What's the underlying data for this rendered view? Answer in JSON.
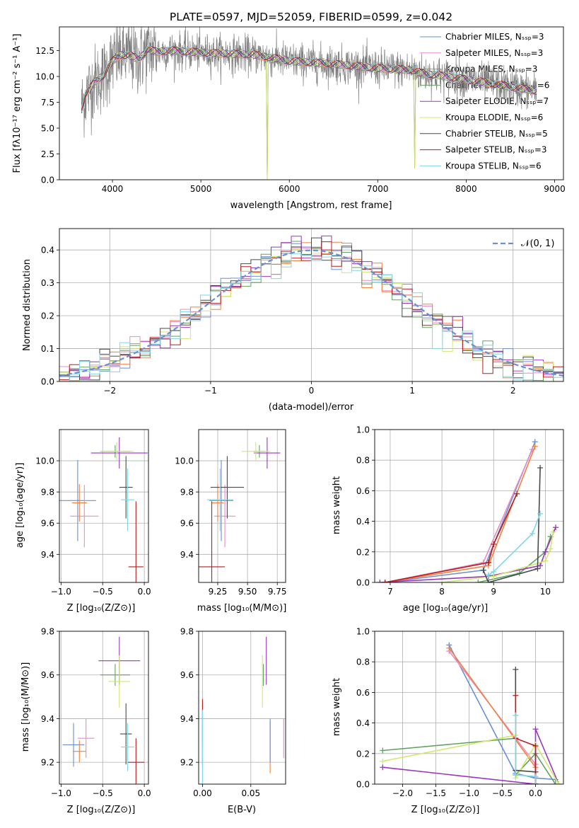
{
  "colors": {
    "c0": "#6a8fd6",
    "c1": "#e98bc6",
    "c2": "#f0803c",
    "c3": "#5fa35f",
    "c4": "#9a35c0",
    "c5": "#cfe86e",
    "c6": "#4a4a4a",
    "c7": "#b81d1d",
    "c8": "#7fd6e6",
    "spec": "#808080",
    "grid": "#b0b0b0"
  },
  "chart_data": [
    {
      "id": "spectrum",
      "type": "line",
      "title": "PLATE=0597, MJD=52059, FIBERID=0599, z=0.042",
      "xlabel": "wavelength [Angstrom, rest frame]",
      "ylabel": "Flux [fλ10⁻¹⁷ erg cm⁻² s⁻¹ A⁻¹]",
      "xlim": [
        3400,
        9100
      ],
      "ylim": [
        0,
        14.8
      ],
      "xticks": [
        4000,
        5000,
        6000,
        7000,
        8000,
        9000
      ],
      "yticks": [
        0.0,
        2.5,
        5.0,
        7.5,
        10.0,
        12.5
      ],
      "grid": false,
      "legend_position": "top-right",
      "series": [
        {
          "name": "Chabrier MILES, Nₛₛₚ=3",
          "color": "#6a8fd6"
        },
        {
          "name": "Salpeter MILES, Nₛₛₚ=3",
          "color": "#e98bc6"
        },
        {
          "name": "Kroupa MILES, Nₛₛₚ=3",
          "color": "#f0803c"
        },
        {
          "name": "Chabrier ELODIE, Nₛₛₚ=6",
          "color": "#5fa35f"
        },
        {
          "name": "Salpeter ELODIE, Nₛₛₚ=7",
          "color": "#9a35c0"
        },
        {
          "name": "Kroupa ELODIE, Nₛₛₚ=6",
          "color": "#cfe86e"
        },
        {
          "name": "Chabrier STELIB, Nₛₛₚ=5",
          "color": "#4a4a4a"
        },
        {
          "name": "Salpeter STELIB, Nₛₛₚ=3",
          "color": "#b81d1d"
        },
        {
          "name": "Kroupa STELIB, Nₛₛₚ=6",
          "color": "#7fd6e6"
        }
      ],
      "continuum": {
        "x": [
          3650,
          3700,
          3800,
          3900,
          4000,
          4100,
          4200,
          4300,
          4400,
          4500,
          4700,
          5000,
          5300,
          5600,
          6000,
          6500,
          7000,
          7400,
          7500,
          7700,
          8000,
          8300,
          8500,
          8800
        ],
        "y": [
          7.0,
          8.3,
          9.5,
          10.1,
          11.5,
          12.1,
          12.0,
          11.7,
          12.6,
          12.4,
          12.5,
          12.3,
          12.2,
          12.1,
          11.5,
          11.2,
          10.8,
          10.6,
          10.3,
          10.1,
          9.7,
          9.3,
          9.0,
          8.6
        ]
      },
      "drops": [
        [
          3920,
          0
        ],
        [
          5750,
          0
        ],
        [
          6800,
          0.5
        ],
        [
          7420,
          1.1
        ]
      ]
    },
    {
      "id": "residuals",
      "type": "bar",
      "xlabel": "(data-model)/error",
      "ylabel": "Normed distribution",
      "xlim": [
        -2.5,
        2.5
      ],
      "ylim": [
        0,
        0.465
      ],
      "xticks": [
        -2,
        -1,
        0,
        1,
        2
      ],
      "yticks": [
        0.0,
        0.1,
        0.2,
        0.3,
        0.4
      ],
      "grid": true,
      "legend_position": "top-right",
      "curve_label": "𝒩(0, 1)",
      "bin_width": 0.1
    },
    {
      "id": "age-vs-z",
      "type": "scatter",
      "xlabel": "Z [log₁₀(Z/Z⊙)]",
      "ylabel": "age  [log₁₀(age/yr)]",
      "xlim": [
        -1.02,
        0.05
      ],
      "ylim": [
        9.22,
        10.2
      ],
      "xticks": [
        -1.0,
        -0.5,
        0.0
      ],
      "yticks": [
        9.4,
        9.6,
        9.8,
        10.0
      ],
      "grid": true,
      "points": [
        {
          "color": "#6a8fd6",
          "x": -0.8,
          "xerr": 0.22,
          "y": 9.745,
          "yerr": 0.26
        },
        {
          "color": "#e98bc6",
          "x": -0.72,
          "xerr": 0.17,
          "y": 9.645,
          "yerr": 0.2
        },
        {
          "color": "#f0803c",
          "x": -0.78,
          "xerr": 0.09,
          "y": 9.73,
          "yerr": 0.12
        },
        {
          "color": "#5fa35f",
          "x": -0.35,
          "xerr": 0.18,
          "y": 10.06,
          "yerr": 0.04
        },
        {
          "color": "#9a35c0",
          "x": -0.3,
          "xerr": 0.34,
          "y": 10.05,
          "yerr": 0.1
        },
        {
          "color": "#cfe86e",
          "x": -0.33,
          "xerr": 0.2,
          "y": 10.06,
          "yerr": 0.06
        },
        {
          "color": "#4a4a4a",
          "x": -0.22,
          "xerr": 0.08,
          "y": 9.83,
          "yerr": 0.2
        },
        {
          "color": "#b81d1d",
          "x": -0.1,
          "xerr": 0.09,
          "y": 9.32,
          "yerr": 0.42
        },
        {
          "color": "#7fd6e6",
          "x": -0.2,
          "xerr": 0.08,
          "y": 9.75,
          "yerr": 0.2
        }
      ]
    },
    {
      "id": "age-vs-mass",
      "type": "scatter",
      "xlabel": "mass [log₁₀(M/M⊙)]",
      "ylabel": "",
      "xlim": [
        9.09,
        9.82
      ],
      "ylim": [
        9.22,
        10.2
      ],
      "xticks": [
        9.25,
        9.5,
        9.75
      ],
      "yticks": [
        9.4,
        9.6,
        9.8,
        10.0
      ],
      "grid": true,
      "points": [
        {
          "color": "#6a8fd6",
          "x": 9.28,
          "xerr": 0.1,
          "y": 9.745,
          "yerr": 0.26
        },
        {
          "color": "#e98bc6",
          "x": 9.31,
          "xerr": 0.09,
          "y": 9.645,
          "yerr": 0.2
        },
        {
          "color": "#f0803c",
          "x": 9.25,
          "xerr": 0.05,
          "y": 9.73,
          "yerr": 0.12
        },
        {
          "color": "#5fa35f",
          "x": 9.6,
          "xerr": 0.05,
          "y": 10.06,
          "yerr": 0.04
        },
        {
          "color": "#9a35c0",
          "x": 9.665,
          "xerr": 0.11,
          "y": 10.05,
          "yerr": 0.1
        },
        {
          "color": "#cfe86e",
          "x": 9.57,
          "xerr": 0.12,
          "y": 10.06,
          "yerr": 0.06
        },
        {
          "color": "#4a4a4a",
          "x": 9.33,
          "xerr": 0.14,
          "y": 9.83,
          "yerr": 0.2
        },
        {
          "color": "#b81d1d",
          "x": 9.2,
          "xerr": 0.11,
          "y": 9.32,
          "yerr": 0.42
        },
        {
          "color": "#7fd6e6",
          "x": 9.27,
          "xerr": 0.11,
          "y": 9.75,
          "yerr": 0.2
        }
      ]
    },
    {
      "id": "cum-mass-vs-age",
      "type": "line",
      "xlabel": "age  [log₁₀(age/yr)]",
      "ylabel": "mass weight",
      "xlim": [
        6.7,
        10.35
      ],
      "ylim": [
        0,
        1.0
      ],
      "xticks": [
        7,
        8,
        9,
        10
      ],
      "yticks": [
        0.0,
        0.2,
        0.4,
        0.6,
        0.8,
        1.0
      ],
      "grid": true,
      "series": [
        {
          "color": "#6a8fd6",
          "x": [
            6.9,
            8.8,
            9.8
          ],
          "y": [
            0.0,
            0.08,
            0.92
          ]
        },
        {
          "color": "#e98bc6",
          "x": [
            6.9,
            8.8,
            9.75
          ],
          "y": [
            0.0,
            0.13,
            0.87
          ]
        },
        {
          "color": "#f0803c",
          "x": [
            6.9,
            8.9,
            9.8
          ],
          "y": [
            0.0,
            0.11,
            0.89
          ]
        },
        {
          "color": "#5fa35f",
          "x": [
            8.7,
            9.5,
            10.0,
            10.1
          ],
          "y": [
            0.0,
            0.06,
            0.2,
            0.3
          ]
        },
        {
          "color": "#9a35c0",
          "x": [
            6.8,
            8.9,
            9.9,
            10.0,
            10.2
          ],
          "y": [
            0.0,
            0.04,
            0.11,
            0.2,
            0.36
          ]
        },
        {
          "color": "#cfe86e",
          "x": [
            8.0,
            9.0,
            10.0,
            10.1,
            10.15
          ],
          "y": [
            0.0,
            0.04,
            0.14,
            0.22,
            0.33
          ]
        },
        {
          "color": "#4a4a4a",
          "x": [
            8.8,
            8.9,
            9.85,
            9.9
          ],
          "y": [
            0.08,
            0.0,
            0.09,
            0.75
          ]
        },
        {
          "color": "#b81d1d",
          "x": [
            6.9,
            8.9,
            9.0,
            9.45
          ],
          "y": [
            0.0,
            0.13,
            0.25,
            0.58
          ]
        },
        {
          "color": "#7fd6e6",
          "x": [
            8.9,
            9.0,
            9.75,
            9.9
          ],
          "y": [
            0.05,
            0.07,
            0.32,
            0.45
          ]
        }
      ]
    },
    {
      "id": "mass-vs-z",
      "type": "scatter",
      "xlabel": "Z [log₁₀(Z/Z⊙)]",
      "ylabel": "mass [log₁₀(M/M⊙)]",
      "xlim": [
        -1.02,
        0.05
      ],
      "ylim": [
        9.1,
        9.8
      ],
      "xticks": [
        -1.0,
        -0.5,
        0.0
      ],
      "yticks": [
        9.2,
        9.4,
        9.6,
        9.8
      ],
      "grid": true,
      "points": [
        {
          "color": "#6a8fd6",
          "x": -0.85,
          "xerr": 0.13,
          "y": 9.28,
          "yerr": 0.1
        },
        {
          "color": "#e98bc6",
          "x": -0.7,
          "xerr": 0.1,
          "y": 9.31,
          "yerr": 0.09
        },
        {
          "color": "#f0803c",
          "x": -0.78,
          "xerr": 0.08,
          "y": 9.25,
          "yerr": 0.05
        },
        {
          "color": "#5fa35f",
          "x": -0.35,
          "xerr": 0.18,
          "y": 9.6,
          "yerr": 0.05
        },
        {
          "color": "#9a35c0",
          "x": -0.3,
          "xerr": 0.25,
          "y": 9.665,
          "yerr": 0.11
        },
        {
          "color": "#cfe86e",
          "x": -0.3,
          "xerr": 0.13,
          "y": 9.57,
          "yerr": 0.12
        },
        {
          "color": "#4a4a4a",
          "x": -0.22,
          "xerr": 0.07,
          "y": 9.33,
          "yerr": 0.14
        },
        {
          "color": "#b81d1d",
          "x": -0.1,
          "xerr": 0.1,
          "y": 9.2,
          "yerr": 0.11
        },
        {
          "color": "#7fd6e6",
          "x": -0.2,
          "xerr": 0.08,
          "y": 9.27,
          "yerr": 0.11
        }
      ]
    },
    {
      "id": "mass-vs-ebv",
      "type": "scatter",
      "xlabel": "E(B-V)",
      "ylabel": "",
      "xlim": [
        -0.004,
        0.086
      ],
      "ylim": [
        9.1,
        9.8
      ],
      "xticks": [
        0.0,
        0.05
      ],
      "yticks": [
        9.2,
        9.4,
        9.6,
        9.8
      ],
      "grid": true,
      "points": [
        {
          "color": "#6a8fd6",
          "x": 0.0,
          "xerr": 0,
          "y": 9.28,
          "yerr": 0.1
        },
        {
          "color": "#e98bc6",
          "x": 0.084,
          "xerr": 0,
          "y": 9.31,
          "yerr": 0.09
        },
        {
          "color": "#f0803c",
          "x": 0.0,
          "xerr": 0,
          "y": 9.25,
          "yerr": 0.05
        },
        {
          "color": "#5fa35f",
          "x": 0.063,
          "xerr": 0,
          "y": 9.6,
          "yerr": 0.05
        },
        {
          "color": "#9a35c0",
          "x": 0.066,
          "xerr": 0,
          "y": 9.665,
          "yerr": 0.11
        },
        {
          "color": "#cfe86e",
          "x": 0.062,
          "xerr": 0,
          "y": 9.57,
          "yerr": 0.12
        },
        {
          "color": "#4a4a4a",
          "x": 0.0,
          "xerr": 0,
          "y": 9.33,
          "yerr": 0.14
        },
        {
          "color": "#b81d1d",
          "x": 0.0,
          "xerr": 0,
          "y": 9.39,
          "yerr": 0.1
        },
        {
          "color": "#7fd6e6",
          "x": 0.0,
          "xerr": 0,
          "y": 9.27,
          "yerr": 0.17
        },
        {
          "color": "#f0803c",
          "x": 0.07,
          "xerr": 0,
          "y": 9.27,
          "yerr": 0.12
        },
        {
          "color": "#6a8fd6",
          "x": 0.07,
          "xerr": 0,
          "y": 9.3,
          "yerr": 0.1
        }
      ]
    },
    {
      "id": "cum-mass-vs-z",
      "type": "line",
      "xlabel": "Z [log₁₀(Z/Z⊙)]",
      "ylabel": "mass weight",
      "xlim": [
        -2.42,
        0.42
      ],
      "ylim": [
        0,
        1.0
      ],
      "xticks": [
        -2.0,
        -1.5,
        -1.0,
        -0.5,
        0.0
      ],
      "yticks": [
        0.0,
        0.2,
        0.4,
        0.6,
        0.8,
        1.0
      ],
      "grid": true,
      "series": [
        {
          "color": "#6a8fd6",
          "x": [
            -1.3,
            -0.3,
            0.0,
            0.3
          ],
          "y": [
            0.91,
            0.07,
            0.04,
            0.03
          ]
        },
        {
          "color": "#e98bc6",
          "x": [
            -1.3,
            0.0,
            0.0
          ],
          "y": [
            0.87,
            0.13,
            0.0
          ]
        },
        {
          "color": "#f0803c",
          "x": [
            -1.3,
            0.0,
            0.0
          ],
          "y": [
            0.89,
            0.11,
            0.0
          ]
        },
        {
          "color": "#5fa35f",
          "x": [
            -2.3,
            -0.3,
            -0.3,
            0.0,
            0.3
          ],
          "y": [
            0.22,
            0.3,
            0.06,
            0.2,
            0.0
          ]
        },
        {
          "color": "#9a35c0",
          "x": [
            -2.3,
            0.0,
            0.0,
            0.35
          ],
          "y": [
            0.11,
            0.0,
            0.36,
            0.0
          ]
        },
        {
          "color": "#cfe86e",
          "x": [
            -2.3,
            -0.3,
            -0.3,
            0.0,
            0.35
          ],
          "y": [
            0.15,
            0.32,
            0.04,
            0.26,
            0.0
          ]
        },
        {
          "color": "#4a4a4a",
          "x": [
            -0.3,
            -0.3,
            0.0,
            0.0
          ],
          "y": [
            0.75,
            0.09,
            0.08,
            0.0
          ]
        },
        {
          "color": "#b81d1d",
          "x": [
            -0.3,
            -0.3,
            0.0,
            0.0
          ],
          "y": [
            0.58,
            0.3,
            0.25,
            0.0
          ]
        },
        {
          "color": "#7fd6e6",
          "x": [
            -0.3,
            -0.3,
            0.0,
            0.0
          ],
          "y": [
            0.45,
            0.06,
            0.05,
            0.0
          ]
        }
      ]
    }
  ]
}
